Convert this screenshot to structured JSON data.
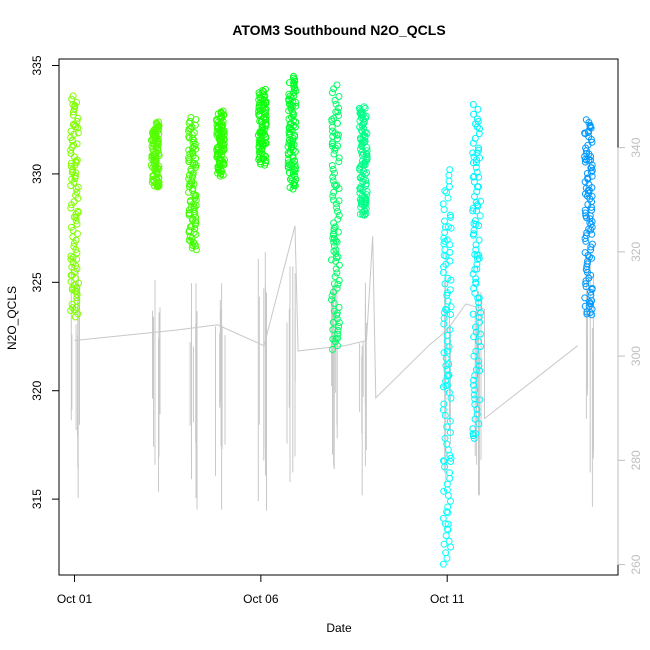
{
  "chart_data": {
    "type": "scatter",
    "title": "ATOM3 Southbound N2O_QCLS",
    "xlabel": "Date",
    "ylabel": "N2O_QCLS",
    "x_axis": {
      "type": "date",
      "range": [
        "2017-09-30T14:00",
        "2017-10-15T14:00"
      ],
      "ticks": [
        {
          "value": "2017-10-01",
          "label": "Oct 01"
        },
        {
          "value": "2017-10-06",
          "label": "Oct 06"
        },
        {
          "value": "2017-10-11",
          "label": "Oct 11"
        }
      ]
    },
    "y_axis": {
      "range": [
        311.5,
        335.3
      ],
      "ticks": [
        315,
        320,
        325,
        330,
        335
      ]
    },
    "y2_axis": {
      "description": "secondary quantity drawn as grey trace",
      "range": [
        258,
        357
      ],
      "ticks": [
        260,
        280,
        300,
        320,
        340
      ],
      "color": "#bfbfbf"
    },
    "grey_trace_color": "#c8c8c8",
    "grey_trace": [
      {
        "d": "2017-10-01T00:00",
        "v": 303
      },
      {
        "d": "2017-10-03T18:00",
        "v": 305
      },
      {
        "d": "2017-10-04T20:00",
        "v": 306
      },
      {
        "d": "2017-10-06T02:00",
        "v": 302
      },
      {
        "d": "2017-10-06T22:00",
        "v": 325
      },
      {
        "d": "2017-10-07T00:00",
        "v": 301
      },
      {
        "d": "2017-10-08T06:00",
        "v": 302
      },
      {
        "d": "2017-10-08T20:00",
        "v": 303
      },
      {
        "d": "2017-10-09T00:00",
        "v": 323
      },
      {
        "d": "2017-10-09T02:00",
        "v": 292
      },
      {
        "d": "2017-10-10T12:00",
        "v": 302
      },
      {
        "d": "2017-10-11T00:00",
        "v": 305
      },
      {
        "d": "2017-10-11T12:00",
        "v": 310
      },
      {
        "d": "2017-10-12T00:00",
        "v": 309
      },
      {
        "d": "2017-10-12T00:00",
        "v": 288
      },
      {
        "d": "2017-10-14T12:00",
        "v": 302
      }
    ],
    "clusters": [
      {
        "x": "2017-10-01T00:00",
        "y_min": 323.4,
        "y_max": 333.6,
        "color": "#80ff00"
      },
      {
        "x": "2017-10-03T04:00",
        "y_min": 329.4,
        "y_max": 332.4,
        "color": "#55ff00"
      },
      {
        "x": "2017-10-04T04:00",
        "y_min": 326.5,
        "y_max": 332.6,
        "color": "#40ff00"
      },
      {
        "x": "2017-10-04T22:00",
        "y_min": 329.9,
        "y_max": 332.9,
        "color": "#2bff00"
      },
      {
        "x": "2017-10-06T01:00",
        "y_min": 330.4,
        "y_max": 333.9,
        "color": "#10ff10"
      },
      {
        "x": "2017-10-06T20:00",
        "y_min": 329.3,
        "y_max": 334.5,
        "color": "#00ff2a"
      },
      {
        "x": "2017-10-08T00:00",
        "y_min": 321.9,
        "y_max": 334.1,
        "color": "#00ff66"
      },
      {
        "x": "2017-10-08T18:00",
        "y_min": 328.1,
        "y_max": 333.1,
        "color": "#00ff88"
      },
      {
        "x": "2017-10-11T00:00",
        "y_min": 312.0,
        "y_max": 330.2,
        "color": "#00ffff"
      },
      {
        "x": "2017-10-11T19:00",
        "y_min": 317.8,
        "y_max": 333.2,
        "color": "#00f5ff"
      },
      {
        "x": "2017-10-14T19:00",
        "y_min": 323.5,
        "y_max": 332.5,
        "color": "#0099ff"
      }
    ]
  }
}
